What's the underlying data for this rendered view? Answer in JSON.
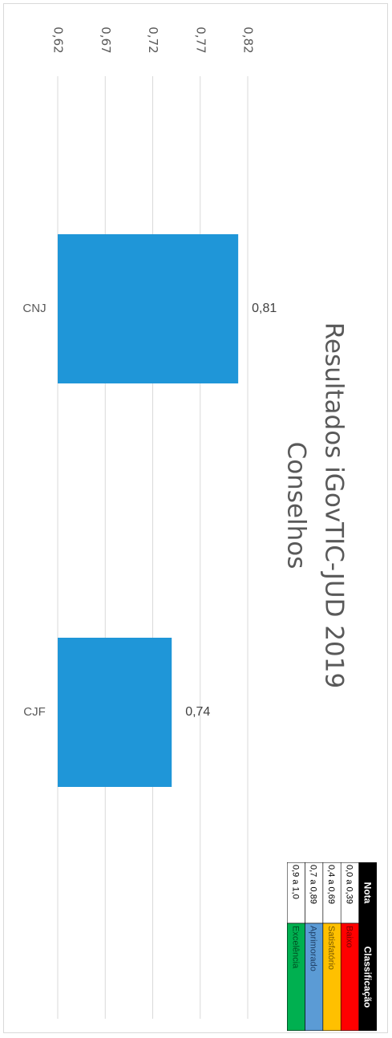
{
  "chart_data": {
    "type": "bar",
    "orientation": "horizontal",
    "title_lines": [
      "Resultados iGovTIC-JUD 2019",
      "Conselhos"
    ],
    "categories": [
      "CNJ",
      "CJF"
    ],
    "values": [
      0.81,
      0.74
    ],
    "value_labels": [
      "0,81",
      "0,74"
    ],
    "axis": {
      "min": 0.62,
      "max": 0.82,
      "ticks": [
        "0,62",
        "0,67",
        "0,72",
        "0,77",
        "0,82"
      ],
      "gridlines": true
    },
    "bar_color": "#1f96d8",
    "legend_table": {
      "headers": [
        "Nota",
        "Classificação"
      ],
      "rows": [
        {
          "range": "0,0 a 0,39",
          "label": "Baixo",
          "color": "#ff0000",
          "text_color": "#7a0000"
        },
        {
          "range": "0,4 a 0,69",
          "label": "Satisfatório",
          "color": "#ffc000",
          "text_color": "#7a5a00"
        },
        {
          "range": "0,7 a 0,89",
          "label": "Aprimorado",
          "color": "#5b9bd5",
          "text_color": "#1f3f66"
        },
        {
          "range": "0,9 a 1,0",
          "label": "Excelência",
          "color": "#00b050",
          "text_color": "#004d22"
        }
      ]
    }
  }
}
